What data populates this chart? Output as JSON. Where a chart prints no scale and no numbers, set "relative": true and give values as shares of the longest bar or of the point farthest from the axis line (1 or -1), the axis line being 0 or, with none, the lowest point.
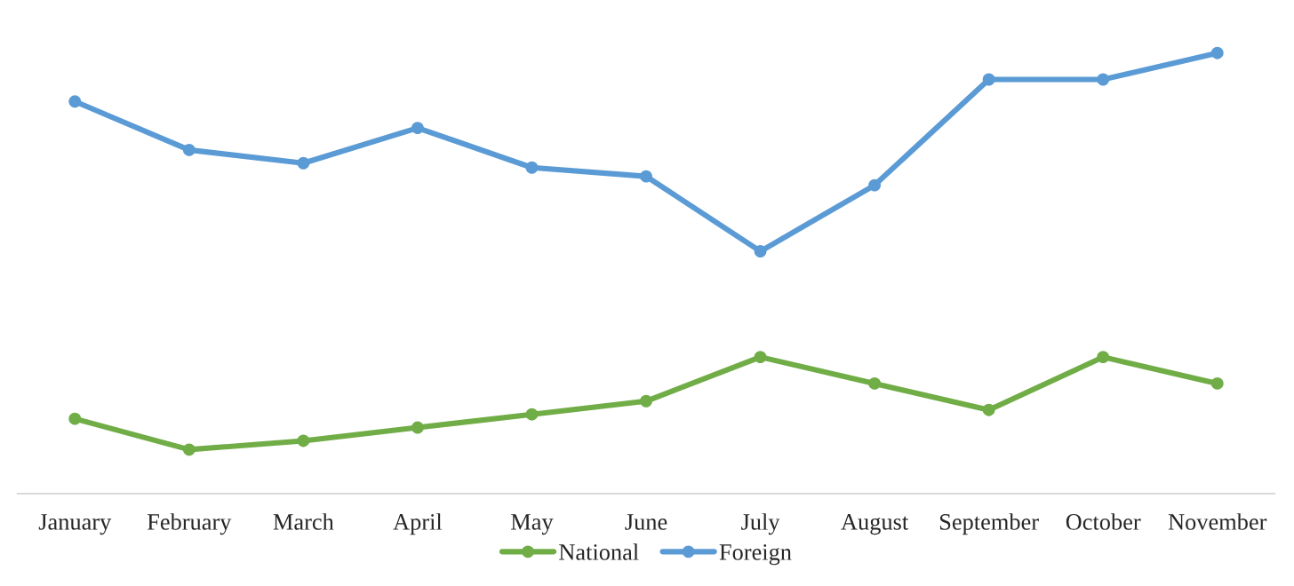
{
  "chart_data": {
    "type": "line",
    "relative": true,
    "categories": [
      "January",
      "February",
      "March",
      "April",
      "May",
      "June",
      "July",
      "August",
      "September",
      "October",
      "November"
    ],
    "series": [
      {
        "name": "National",
        "color": "#70ad47",
        "values": [
          0.17,
          0.1,
          0.12,
          0.15,
          0.18,
          0.21,
          0.31,
          0.25,
          0.19,
          0.31,
          0.25
        ]
      },
      {
        "name": "Foreign",
        "color": "#5b9bd5",
        "values": [
          0.89,
          0.78,
          0.75,
          0.83,
          0.74,
          0.72,
          0.55,
          0.7,
          0.94,
          0.94,
          1.0
        ]
      }
    ],
    "marker": "circle",
    "legend": "bottom",
    "grid": false
  }
}
